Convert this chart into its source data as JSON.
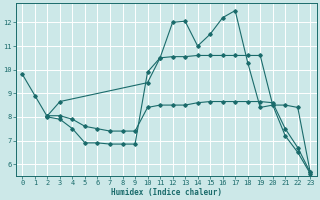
{
  "xlabel": "Humidex (Indice chaleur)",
  "background_color": "#cce8e8",
  "grid_color": "#ffffff",
  "line_color": "#1a6b6b",
  "xlim": [
    -0.5,
    23.5
  ],
  "ylim": [
    5.5,
    12.8
  ],
  "yticks": [
    6,
    7,
    8,
    9,
    10,
    11,
    12
  ],
  "xticks": [
    0,
    1,
    2,
    3,
    4,
    5,
    6,
    7,
    8,
    9,
    10,
    11,
    12,
    13,
    14,
    15,
    16,
    17,
    18,
    19,
    20,
    21,
    22,
    23
  ],
  "line1_x": [
    0,
    1,
    2,
    3,
    4,
    5,
    6,
    7,
    8,
    9,
    10,
    11,
    12,
    13,
    14,
    15,
    16,
    17,
    18,
    19,
    20,
    21,
    22,
    23
  ],
  "line1_y": [
    9.8,
    8.9,
    8.0,
    7.9,
    7.5,
    6.9,
    6.9,
    6.85,
    6.85,
    6.85,
    9.9,
    10.5,
    12.0,
    12.05,
    11.0,
    11.5,
    12.2,
    12.5,
    10.3,
    8.4,
    8.5,
    7.2,
    6.5,
    5.6
  ],
  "line2_x": [
    2,
    3,
    10,
    11,
    12,
    13,
    14,
    15,
    16,
    17,
    18,
    19,
    20,
    21,
    22,
    23
  ],
  "line2_y": [
    8.05,
    8.65,
    9.45,
    10.5,
    10.55,
    10.55,
    10.6,
    10.6,
    10.6,
    10.6,
    10.6,
    10.6,
    8.5,
    8.5,
    8.4,
    5.65
  ],
  "line3_x": [
    2,
    3,
    4,
    5,
    6,
    7,
    8,
    9,
    10,
    11,
    12,
    13,
    14,
    15,
    16,
    17,
    18,
    19,
    20,
    21,
    22,
    23
  ],
  "line3_y": [
    8.05,
    8.05,
    7.9,
    7.6,
    7.5,
    7.4,
    7.4,
    7.4,
    8.4,
    8.5,
    8.5,
    8.5,
    8.6,
    8.65,
    8.65,
    8.65,
    8.65,
    8.65,
    8.6,
    7.5,
    6.7,
    5.65
  ]
}
